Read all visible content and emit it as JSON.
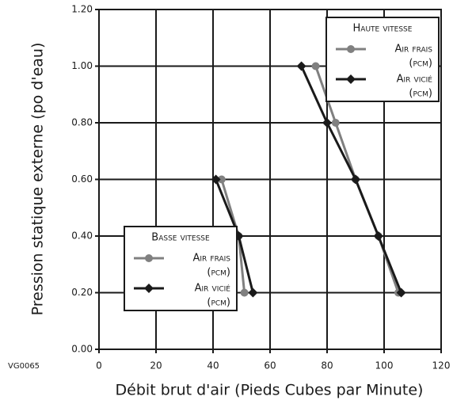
{
  "chart_data": {
    "type": "line",
    "xlabel": "Débit brut d'air (Pieds Cubes par Minute)",
    "ylabel": "Pression statique externe (po d'eau)",
    "figure_id": "VG0065",
    "xlim": [
      0,
      120
    ],
    "xticks": [
      0,
      20,
      40,
      60,
      80,
      100,
      120
    ],
    "ylim": [
      0,
      1.2
    ],
    "yticks": [
      {
        "value": 0,
        "label": "0.00"
      },
      {
        "value": 0.2,
        "label": "0.20"
      },
      {
        "value": 0.4,
        "label": "0.40"
      },
      {
        "value": 0.6,
        "label": "0.60"
      },
      {
        "value": 0.8,
        "label": "0.80"
      },
      {
        "value": 1.0,
        "label": "1.00"
      },
      {
        "value": 1.2,
        "label": "1.20"
      }
    ],
    "grid": true,
    "groups": [
      {
        "title": "Haute vitesse",
        "series": [
          {
            "name": "Air frais",
            "unit": "(pcm)",
            "color": "#808080",
            "marker": "circle",
            "x": [
              76,
              83,
              90,
              98,
              105
            ],
            "values": [
              1.0,
              0.8,
              0.6,
              0.4,
              0.2
            ]
          },
          {
            "name": "Air vicié",
            "unit": "(pcm)",
            "color": "#1a1a1a",
            "marker": "diamond",
            "x": [
              71,
              80,
              90,
              98,
              106
            ],
            "values": [
              1.0,
              0.8,
              0.6,
              0.4,
              0.2
            ]
          }
        ]
      },
      {
        "title": "Basse vitesse",
        "series": [
          {
            "name": "Air frais",
            "unit": "(pcm)",
            "color": "#808080",
            "marker": "circle",
            "x": [
              43,
              49,
              51
            ],
            "values": [
              0.6,
              0.4,
              0.2
            ]
          },
          {
            "name": "Air vicié",
            "unit": "(pcm)",
            "color": "#1a1a1a",
            "marker": "diamond",
            "x": [
              41,
              49,
              54
            ],
            "values": [
              0.6,
              0.4,
              0.2
            ]
          }
        ]
      }
    ]
  }
}
